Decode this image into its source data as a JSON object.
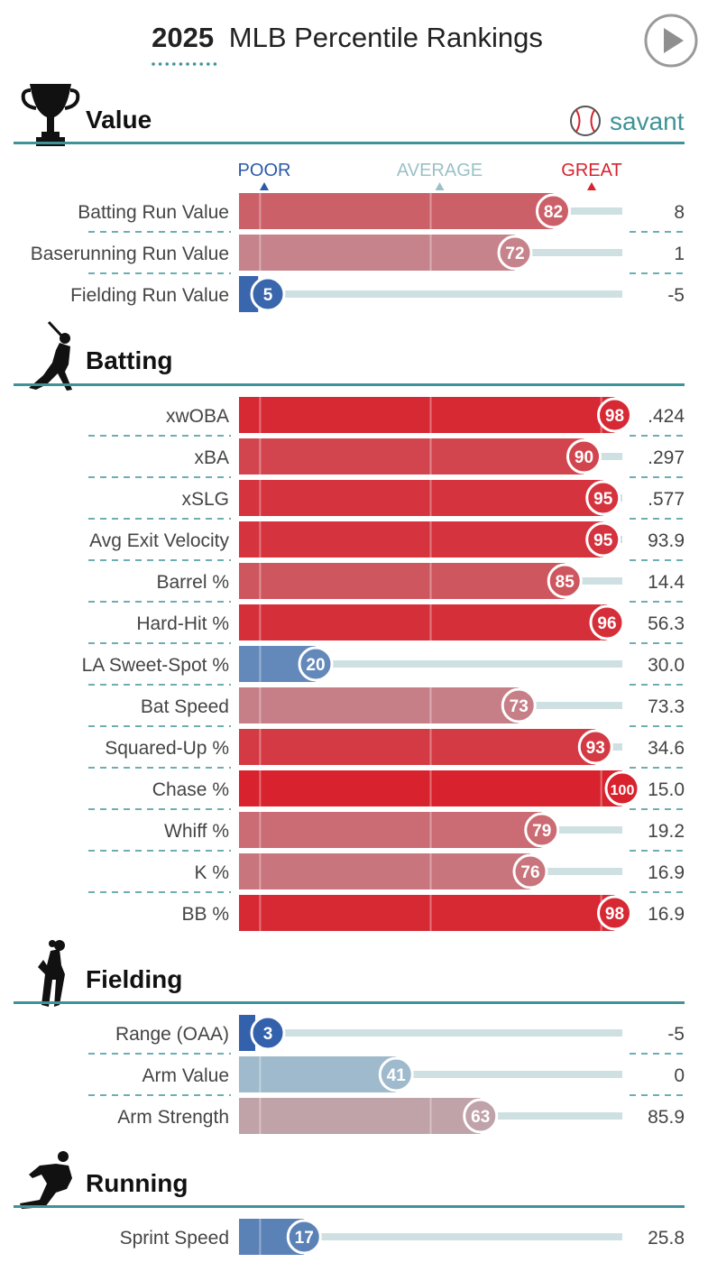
{
  "header": {
    "year": "2025",
    "title_rest": "MLB Percentile Rankings",
    "play_label": "play-button"
  },
  "brand": {
    "label": "savant"
  },
  "scale": {
    "poor": "POOR",
    "average": "AVERAGE",
    "great": "GREAT"
  },
  "colors": {
    "teal": "#3f9398",
    "poor_blue": "#2b5aa8",
    "great_red": "#d8222d",
    "average": "#b8cfd4",
    "track": "#cfe0e2"
  },
  "sections": [
    {
      "name": "Value",
      "icon": "trophy-icon",
      "rows": [
        {
          "label": "Batting Run Value",
          "percentile": 82,
          "value": "8"
        },
        {
          "label": "Baserunning Run Value",
          "percentile": 72,
          "value": "1"
        },
        {
          "label": "Fielding Run Value",
          "percentile": 5,
          "value": "-5"
        }
      ]
    },
    {
      "name": "Batting",
      "icon": "batter-icon",
      "rows": [
        {
          "label": "xwOBA",
          "percentile": 98,
          "value": ".424"
        },
        {
          "label": "xBA",
          "percentile": 90,
          "value": ".297"
        },
        {
          "label": "xSLG",
          "percentile": 95,
          "value": ".577"
        },
        {
          "label": "Avg Exit Velocity",
          "percentile": 95,
          "value": "93.9"
        },
        {
          "label": "Barrel %",
          "percentile": 85,
          "value": "14.4"
        },
        {
          "label": "Hard-Hit %",
          "percentile": 96,
          "value": "56.3"
        },
        {
          "label": "LA Sweet-Spot %",
          "percentile": 20,
          "value": "30.0"
        },
        {
          "label": "Bat Speed",
          "percentile": 73,
          "value": "73.3"
        },
        {
          "label": "Squared-Up %",
          "percentile": 93,
          "value": "34.6"
        },
        {
          "label": "Chase %",
          "percentile": 100,
          "value": "15.0"
        },
        {
          "label": "Whiff %",
          "percentile": 79,
          "value": "19.2"
        },
        {
          "label": "K %",
          "percentile": 76,
          "value": "16.9"
        },
        {
          "label": "BB %",
          "percentile": 98,
          "value": "16.9"
        }
      ]
    },
    {
      "name": "Fielding",
      "icon": "fielder-icon",
      "rows": [
        {
          "label": "Range (OAA)",
          "percentile": 3,
          "value": "-5"
        },
        {
          "label": "Arm Value",
          "percentile": 41,
          "value": "0"
        },
        {
          "label": "Arm Strength",
          "percentile": 63,
          "value": "85.9"
        }
      ]
    },
    {
      "name": "Running",
      "icon": "runner-icon",
      "rows": [
        {
          "label": "Sprint Speed",
          "percentile": 17,
          "value": "25.8"
        }
      ]
    }
  ],
  "chart_data": {
    "type": "bar",
    "title": "2025 MLB Percentile Rankings",
    "orientation": "horizontal",
    "xlim": [
      0,
      100
    ],
    "categories": [
      "Batting Run Value",
      "Baserunning Run Value",
      "Fielding Run Value",
      "xwOBA",
      "xBA",
      "xSLG",
      "Avg Exit Velocity",
      "Barrel %",
      "Hard-Hit %",
      "LA Sweet-Spot %",
      "Bat Speed",
      "Squared-Up %",
      "Chase %",
      "Whiff %",
      "K %",
      "BB %",
      "Range (OAA)",
      "Arm Value",
      "Arm Strength",
      "Sprint Speed"
    ],
    "values": [
      82,
      72,
      5,
      98,
      90,
      95,
      95,
      85,
      96,
      20,
      73,
      93,
      100,
      79,
      76,
      98,
      3,
      41,
      63,
      17
    ]
  }
}
